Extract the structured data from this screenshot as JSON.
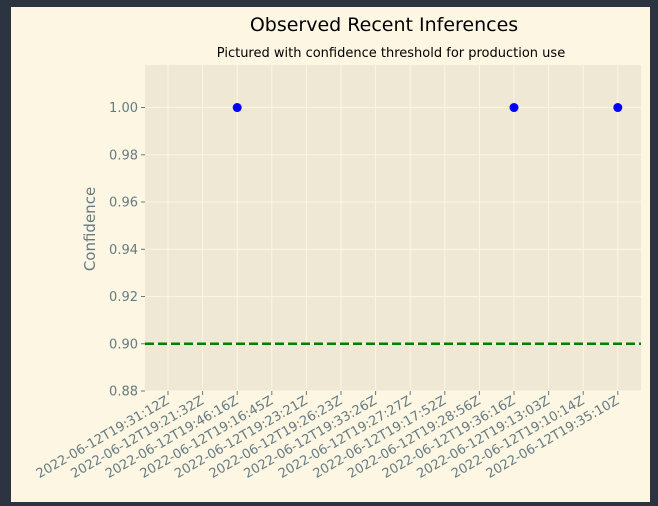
{
  "chart_data": {
    "type": "scatter",
    "title": "Observed Recent Inferences",
    "subtitle": "Pictured with confidence threshold for production use",
    "xlabel": "",
    "ylabel": "Confidence",
    "categories": [
      "2022-06-12T19:31:12Z",
      "2022-06-12T19:21:32Z",
      "2022-06-12T19:46:16Z",
      "2022-06-12T19:16:45Z",
      "2022-06-12T19:23:21Z",
      "2022-06-12T19:26:23Z",
      "2022-06-12T19:33:26Z",
      "2022-06-12T19:27:27Z",
      "2022-06-12T19:17:52Z",
      "2022-06-12T19:28:56Z",
      "2022-06-12T19:36:16Z",
      "2022-06-12T19:13:03Z",
      "2022-06-12T19:10:14Z",
      "2022-06-12T19:35:10Z"
    ],
    "points": [
      {
        "x": "2022-06-12T19:46:16Z",
        "y": 1.0
      },
      {
        "x": "2022-06-12T19:36:16Z",
        "y": 1.0
      },
      {
        "x": "2022-06-12T19:35:10Z",
        "y": 1.0
      }
    ],
    "threshold": 0.9,
    "ylim": [
      0.88,
      1.018
    ],
    "yticks": [
      "0.88",
      "0.90",
      "0.92",
      "0.94",
      "0.96",
      "0.98",
      "1.00"
    ],
    "grid": true,
    "colors": {
      "points": "#0000ff",
      "threshold": "#008000",
      "plot_background": "#eee8d5",
      "figure_background": "#fdf6e3",
      "grid": "#fdf6e3",
      "text": "#657b83"
    }
  }
}
